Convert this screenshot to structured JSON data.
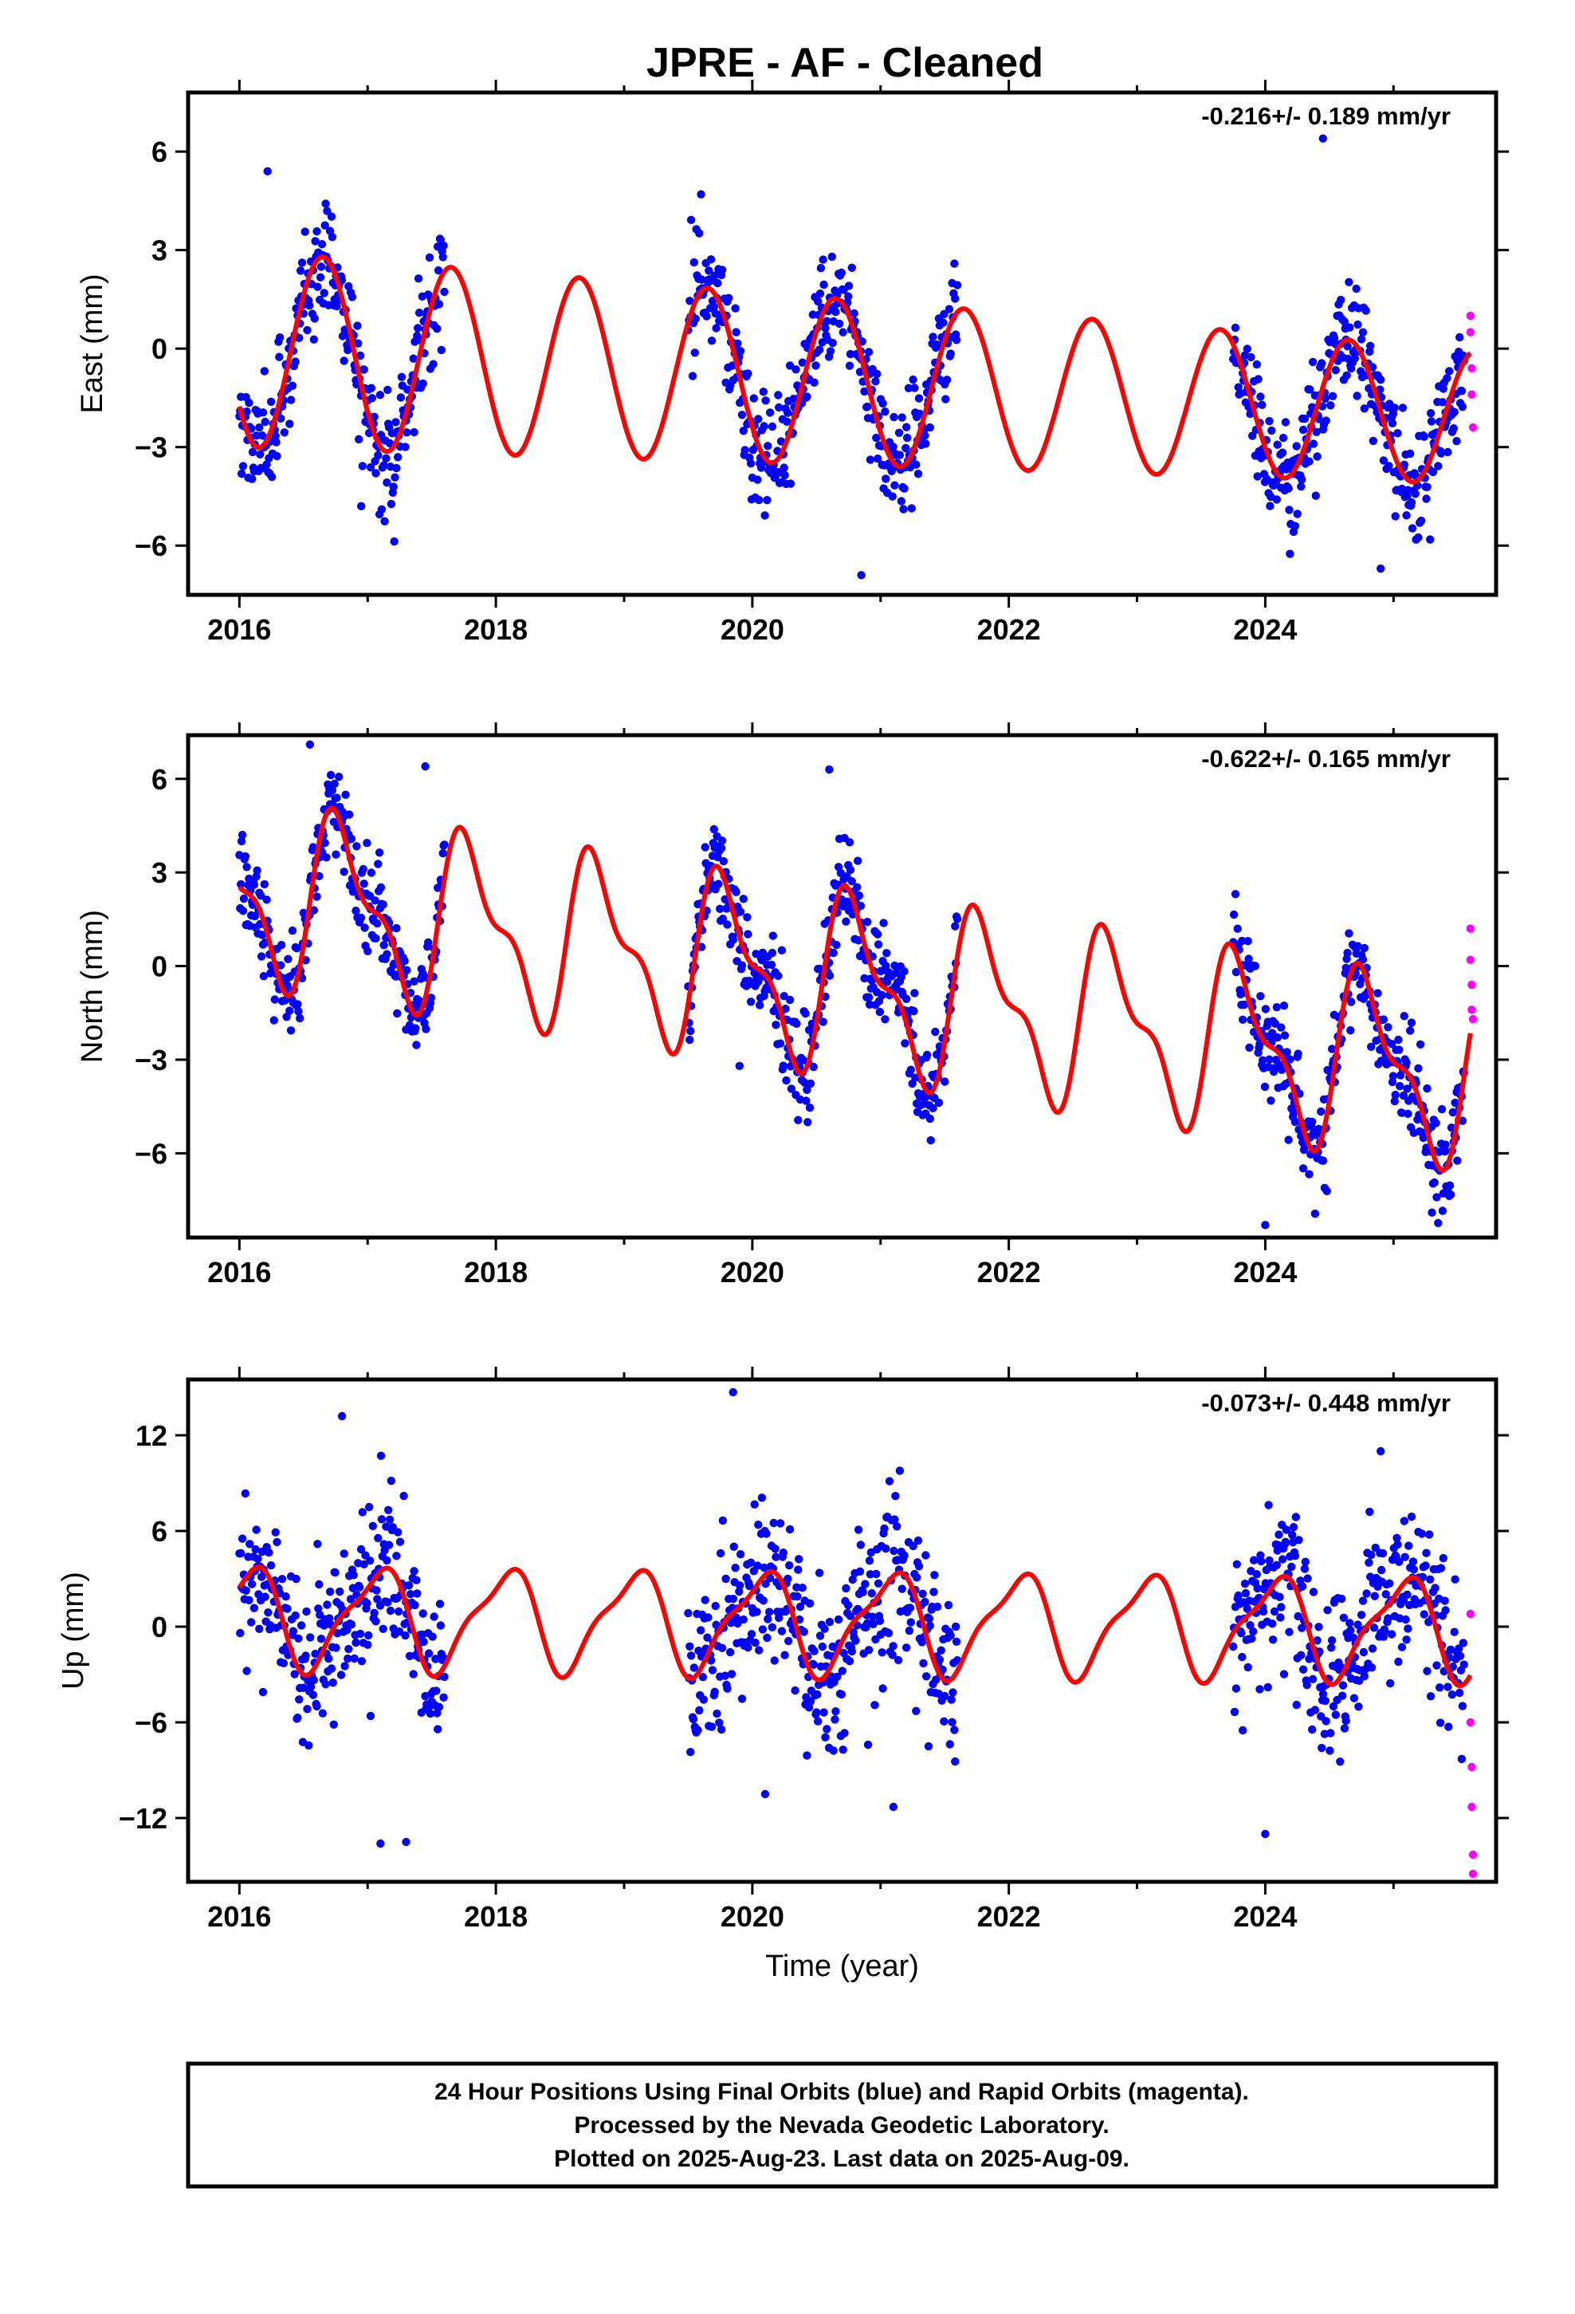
{
  "title": "JPRE  - AF - Cleaned",
  "colors": {
    "final_points": "#0000ff",
    "rapid_points": "#ff00ff",
    "model_line": "#ff0000",
    "frame": "#000000"
  },
  "footer": {
    "line1": "24 Hour Positions Using Final Orbits (blue) and Rapid Orbits (magenta).",
    "line2": "Processed by the Nevada Geodetic Laboratory.",
    "line3": "Plotted on 2025-Aug-23. Last data on 2025-Aug-09."
  },
  "chart_data": [
    {
      "type": "scatter",
      "ylabel": "East (mm)",
      "xlabel": "",
      "rate_label": "-0.216+/- 0.189 mm/yr",
      "xlim": [
        2015.6,
        2025.8
      ],
      "ylim": [
        -7.5,
        7.8
      ],
      "xticks": [
        2016,
        2018,
        2020,
        2022,
        2024
      ],
      "xtick_labels": [
        "2016",
        "2018",
        "2020",
        "2022",
        "2024"
      ],
      "yticks": [
        -6,
        -3,
        0,
        3,
        6
      ],
      "ytick_labels": [
        "−6",
        "−3",
        "0",
        "3",
        "6"
      ],
      "data_segments": [
        [
          2016.0,
          2017.6
        ],
        [
          2019.5,
          2021.6
        ],
        [
          2023.75,
          2025.55
        ]
      ],
      "rapid_span": [
        2025.55,
        2025.62
      ],
      "model": {
        "mean": 0.0,
        "amp": 3.0,
        "amp_trend": -0.1,
        "phase": 0.4,
        "semi_amp": 0.0,
        "semi_phase": 0.0,
        "slope": -0.216,
        "t0": 2016.0
      },
      "noise": 1.1,
      "outliers": [
        [
          2016.22,
          5.4
        ],
        [
          2016.95,
          -4.8
        ],
        [
          2019.6,
          4.7
        ],
        [
          2020.85,
          -6.9
        ],
        [
          2024.45,
          6.4
        ],
        [
          2024.9,
          -6.7
        ]
      ],
      "rapid_points": [
        [
          2025.6,
          1.0
        ],
        [
          2025.6,
          0.5
        ],
        [
          2025.61,
          -0.6
        ],
        [
          2025.61,
          -1.4
        ],
        [
          2025.62,
          -2.4
        ]
      ]
    },
    {
      "type": "scatter",
      "ylabel": "North (mm)",
      "xlabel": "",
      "rate_label": "-0.622+/- 0.165 mm/yr",
      "xlim": [
        2015.6,
        2025.8
      ],
      "ylim": [
        -8.7,
        7.4
      ],
      "xticks": [
        2016,
        2018,
        2020,
        2022,
        2024
      ],
      "xtick_labels": [
        "2016",
        "2018",
        "2020",
        "2022",
        "2024"
      ],
      "yticks": [
        -6,
        -3,
        0,
        3,
        6
      ],
      "ytick_labels": [
        "−6",
        "−3",
        "0",
        "3",
        "6"
      ],
      "data_segments": [
        [
          2016.0,
          2017.6
        ],
        [
          2019.5,
          2021.6
        ],
        [
          2023.75,
          2025.55
        ]
      ],
      "rapid_span": [
        2025.55,
        2025.62
      ],
      "model": {
        "mean": 2.4,
        "amp": 2.5,
        "amp_trend": 0.0,
        "phase": 0.55,
        "semi_amp": 1.1,
        "semi_phase": 0.05,
        "slope": -0.622,
        "t0": 2016.0
      },
      "noise": 1.0,
      "outliers": [
        [
          2016.55,
          7.1
        ],
        [
          2017.45,
          6.4
        ],
        [
          2020.6,
          6.3
        ],
        [
          2019.9,
          -3.2
        ],
        [
          2024.0,
          -8.3
        ],
        [
          2025.3,
          -7.9
        ]
      ],
      "rapid_points": [
        [
          2025.6,
          1.2
        ],
        [
          2025.6,
          0.2
        ],
        [
          2025.61,
          -0.6
        ],
        [
          2025.61,
          -1.4
        ],
        [
          2025.62,
          -1.7
        ]
      ]
    },
    {
      "type": "scatter",
      "ylabel": "Up (mm)",
      "xlabel": "Time (year)",
      "rate_label": "-0.073+/- 0.448 mm/yr",
      "xlim": [
        2015.6,
        2025.8
      ],
      "ylim": [
        -16.0,
        15.5
      ],
      "xticks": [
        2016,
        2018,
        2020,
        2022,
        2024
      ],
      "xtick_labels": [
        "2016",
        "2018",
        "2020",
        "2022",
        "2024"
      ],
      "yticks": [
        -12,
        -6,
        0,
        6,
        12
      ],
      "ytick_labels": [
        "−12",
        "−6",
        "0",
        "6",
        "12"
      ],
      "data_segments": [
        [
          2016.0,
          2017.6
        ],
        [
          2019.5,
          2021.6
        ],
        [
          2023.75,
          2025.55
        ]
      ],
      "rapid_span": [
        2025.55,
        2025.62
      ],
      "model": {
        "mean": 0.6,
        "amp": 3.0,
        "amp_trend": 0.0,
        "phase": 0.82,
        "semi_amp": 0.9,
        "semi_phase": 0.1,
        "slope": -0.073,
        "t0": 2016.0
      },
      "noise": 3.2,
      "outliers": [
        [
          2016.8,
          13.2
        ],
        [
          2017.1,
          -13.6
        ],
        [
          2017.3,
          -13.5
        ],
        [
          2019.85,
          14.7
        ],
        [
          2020.1,
          -10.5
        ],
        [
          2021.1,
          -11.3
        ],
        [
          2024.0,
          -13.0
        ],
        [
          2024.9,
          11.0
        ]
      ],
      "rapid_points": [
        [
          2025.6,
          0.8
        ],
        [
          2025.6,
          -6.0
        ],
        [
          2025.61,
          -8.8
        ],
        [
          2025.61,
          -11.3
        ],
        [
          2025.62,
          -14.3
        ],
        [
          2025.62,
          -15.5
        ]
      ]
    }
  ]
}
